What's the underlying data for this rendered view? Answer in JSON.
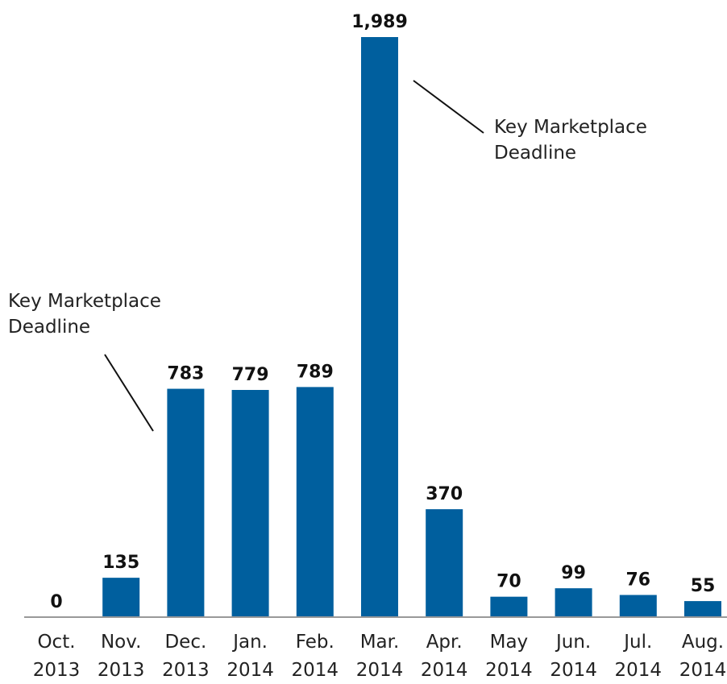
{
  "chart_data": {
    "type": "bar",
    "categories": [
      "Oct. 2013",
      "Nov. 2013",
      "Dec. 2013",
      "Jan. 2014",
      "Feb. 2014",
      "Mar. 2014",
      "Apr. 2014",
      "May 2014",
      "Jun. 2014",
      "Jul. 2014",
      "Aug. 2014"
    ],
    "values": [
      0,
      135,
      783,
      779,
      789,
      1989,
      370,
      70,
      99,
      76,
      55
    ],
    "value_labels": [
      "0",
      "135",
      "783",
      "779",
      "789",
      "1,989",
      "370",
      "70",
      "99",
      "76",
      "55"
    ],
    "color": "#005f9e",
    "annotations": [
      "Key Marketplace Deadline",
      "Key Marketplace Deadline"
    ]
  }
}
